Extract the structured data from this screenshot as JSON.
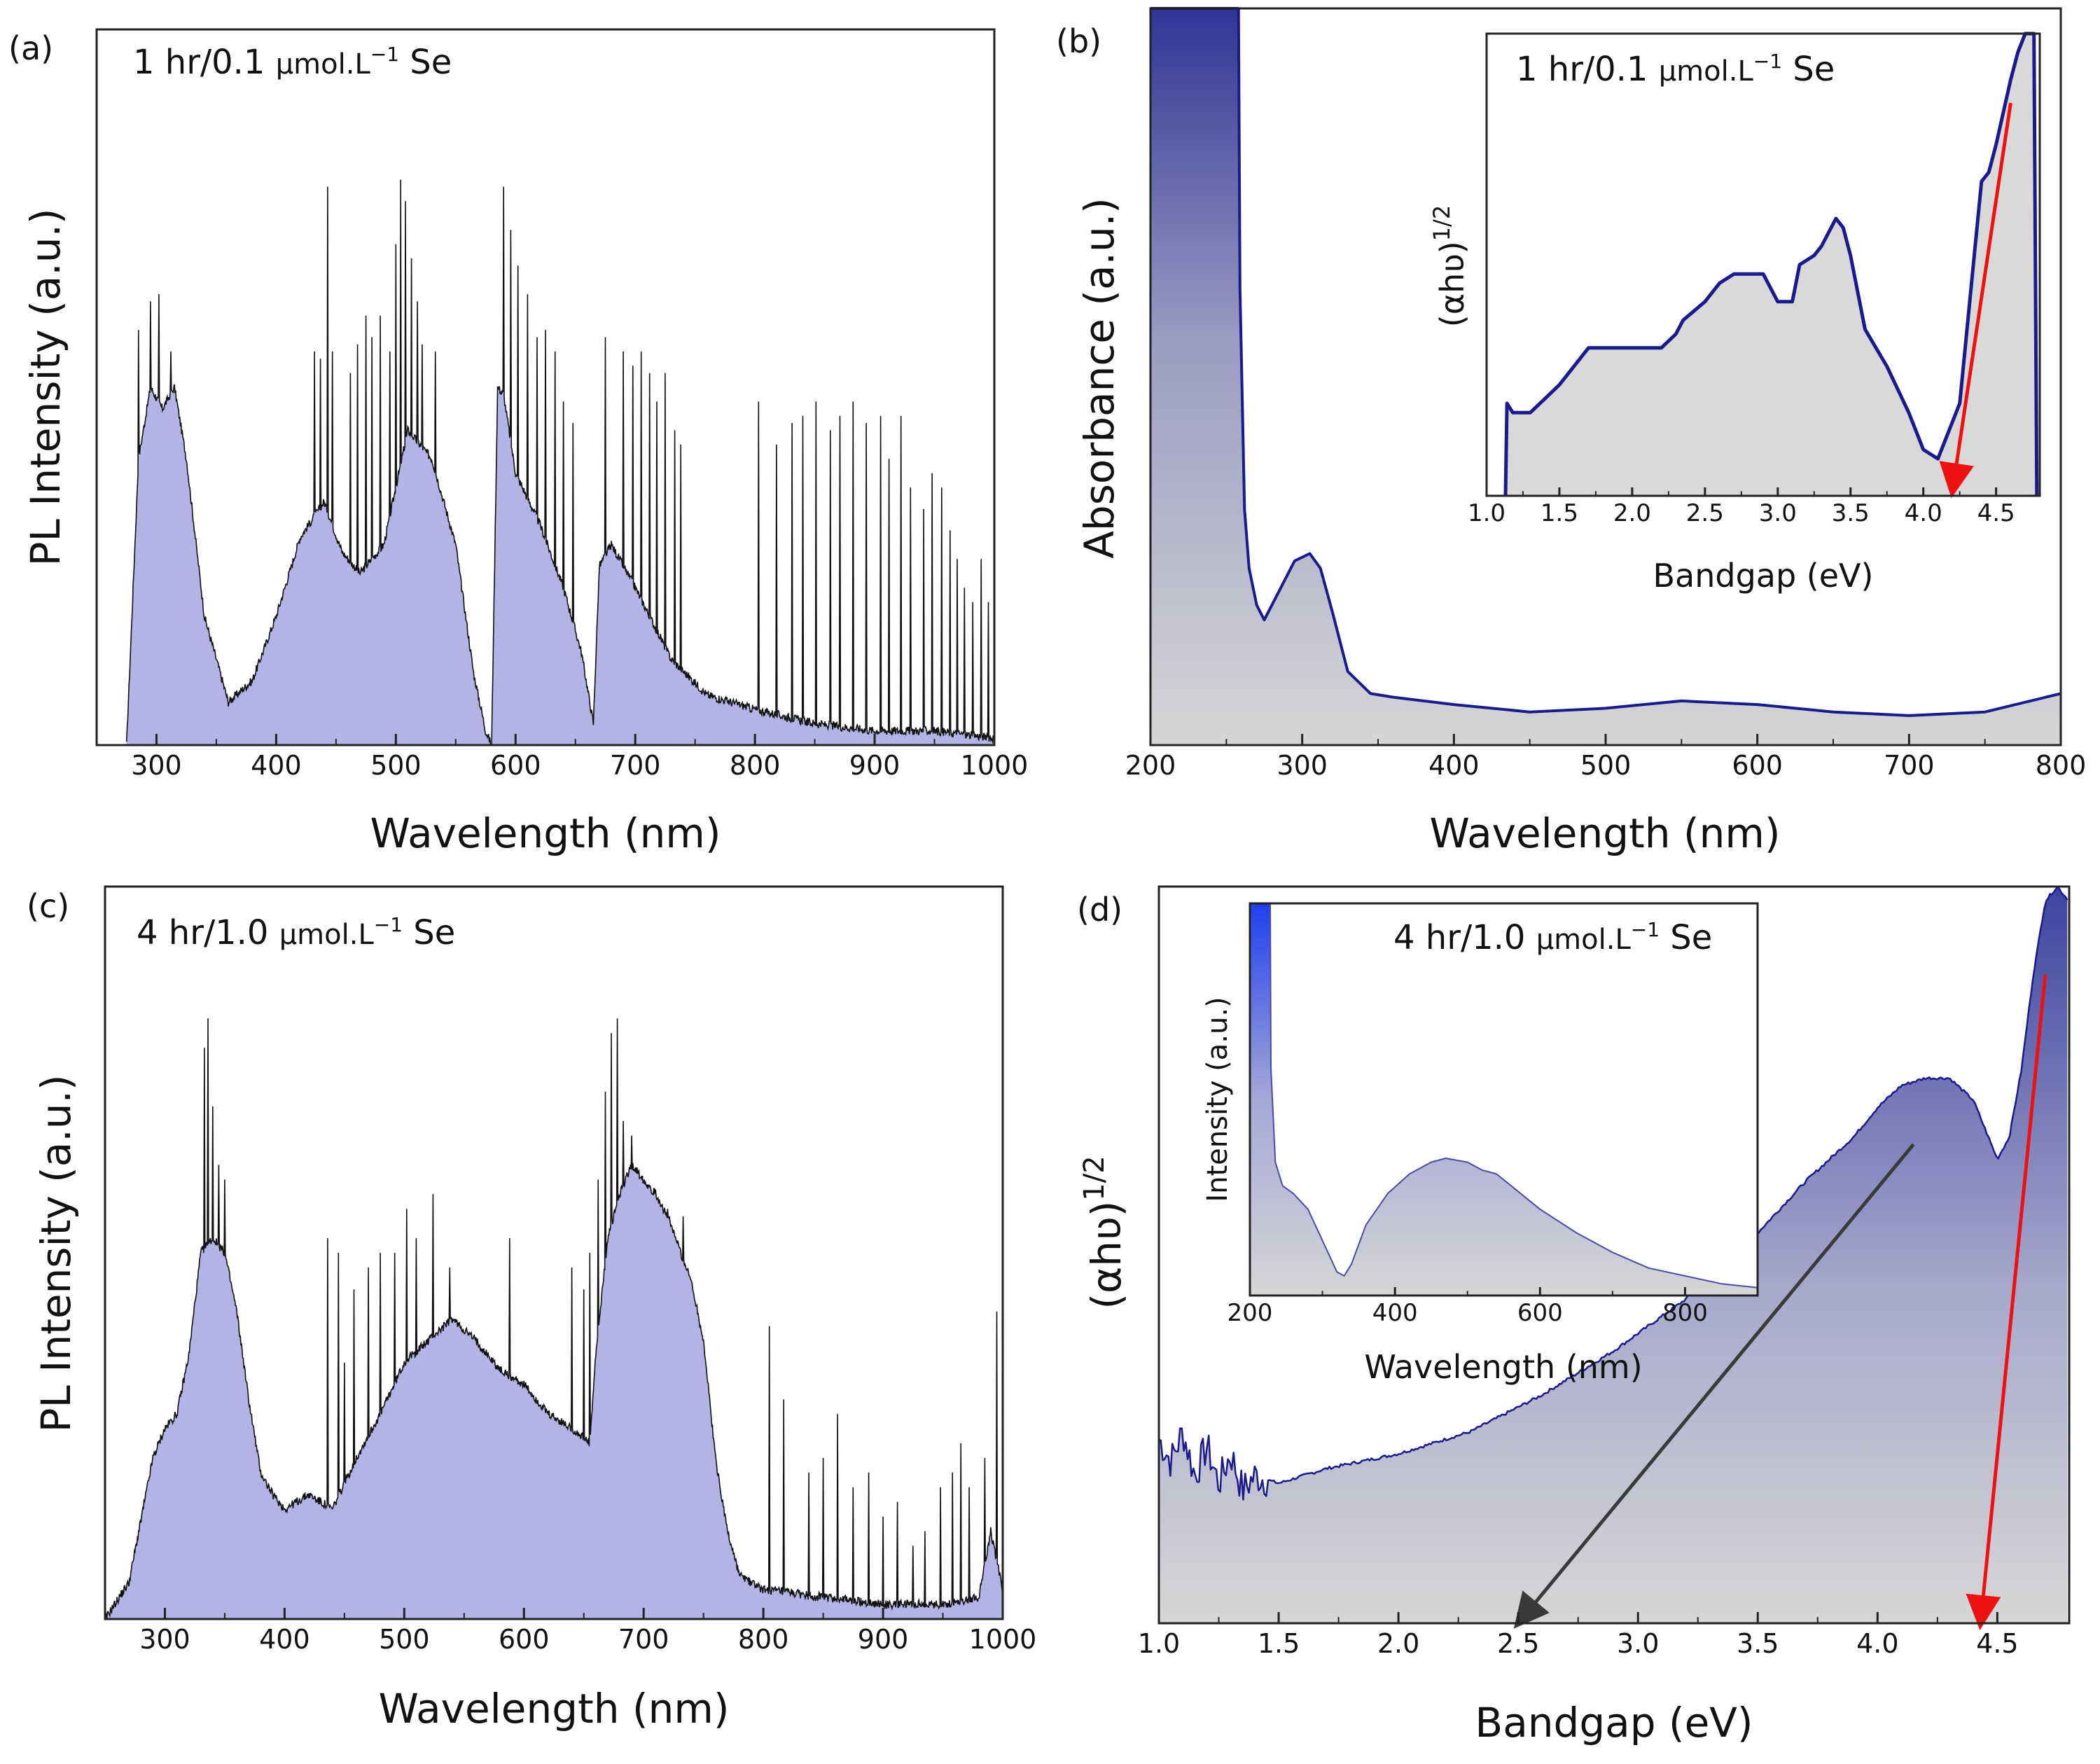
{
  "colors": {
    "pl_fill": "#b3b3e6",
    "pl_line": "#111111",
    "abs_line": "#1a1a8c",
    "abs_fill_top": "#2f3596",
    "abs_fill_bottom": "#d6d6d6",
    "red_arrow": "#ee1111",
    "grey_arrow": "#3a3a3a",
    "inset_top": "#1f3ff0"
  },
  "chart_data": [
    {
      "id": "a",
      "panel_label": "(a)",
      "type": "area",
      "annotation": {
        "prefix": "1 hr/0.1",
        "unit": "µmol.L",
        "sup": "−1",
        "suffix": "Se"
      },
      "xlabel": "Wavelength (nm)",
      "ylabel": "PL Intensity (a.u.)",
      "xlim": [
        250,
        1000
      ],
      "ylim": [
        0,
        100
      ],
      "xticks": [
        300,
        400,
        500,
        600,
        700,
        800,
        900,
        1000
      ],
      "baseline": {
        "x": [
          275,
          285,
          295,
          305,
          315,
          325,
          340,
          360,
          380,
          400,
          420,
          440,
          455,
          470,
          490,
          510,
          530,
          550,
          565,
          575,
          580,
          585,
          590,
          600,
          620,
          640,
          655,
          665,
          670,
          680,
          700,
          730,
          760,
          800,
          850,
          900,
          950,
          1000
        ],
        "y": [
          0,
          40,
          50,
          47,
          50,
          40,
          18,
          6,
          9,
          18,
          29,
          34,
          27,
          24,
          28,
          44,
          40,
          28,
          10,
          2,
          0,
          50,
          49,
          38,
          31,
          22,
          13,
          3,
          25,
          28,
          22,
          12,
          7,
          5,
          3,
          2,
          2,
          1
        ]
      },
      "spikes": [
        {
          "x": 285,
          "y": 58
        },
        {
          "x": 295,
          "y": 62
        },
        {
          "x": 302,
          "y": 63
        },
        {
          "x": 312,
          "y": 55
        },
        {
          "x": 432,
          "y": 55
        },
        {
          "x": 437,
          "y": 54
        },
        {
          "x": 443,
          "y": 78
        },
        {
          "x": 447,
          "y": 55
        },
        {
          "x": 462,
          "y": 52
        },
        {
          "x": 468,
          "y": 56
        },
        {
          "x": 475,
          "y": 60
        },
        {
          "x": 480,
          "y": 57
        },
        {
          "x": 487,
          "y": 60
        },
        {
          "x": 495,
          "y": 55
        },
        {
          "x": 500,
          "y": 70
        },
        {
          "x": 504,
          "y": 79
        },
        {
          "x": 508,
          "y": 76
        },
        {
          "x": 513,
          "y": 68
        },
        {
          "x": 518,
          "y": 62
        },
        {
          "x": 522,
          "y": 56
        },
        {
          "x": 533,
          "y": 55
        },
        {
          "x": 590,
          "y": 78
        },
        {
          "x": 596,
          "y": 72
        },
        {
          "x": 602,
          "y": 67
        },
        {
          "x": 610,
          "y": 63
        },
        {
          "x": 618,
          "y": 57
        },
        {
          "x": 625,
          "y": 58
        },
        {
          "x": 633,
          "y": 55
        },
        {
          "x": 640,
          "y": 48
        },
        {
          "x": 648,
          "y": 45
        },
        {
          "x": 675,
          "y": 57
        },
        {
          "x": 690,
          "y": 55
        },
        {
          "x": 698,
          "y": 53
        },
        {
          "x": 705,
          "y": 55
        },
        {
          "x": 712,
          "y": 52
        },
        {
          "x": 718,
          "y": 48
        },
        {
          "x": 725,
          "y": 52
        },
        {
          "x": 733,
          "y": 44
        },
        {
          "x": 738,
          "y": 42
        },
        {
          "x": 803,
          "y": 48
        },
        {
          "x": 818,
          "y": 42
        },
        {
          "x": 831,
          "y": 45
        },
        {
          "x": 840,
          "y": 46
        },
        {
          "x": 851,
          "y": 48
        },
        {
          "x": 863,
          "y": 44
        },
        {
          "x": 871,
          "y": 46
        },
        {
          "x": 882,
          "y": 48
        },
        {
          "x": 893,
          "y": 45
        },
        {
          "x": 905,
          "y": 46
        },
        {
          "x": 912,
          "y": 40
        },
        {
          "x": 922,
          "y": 46
        },
        {
          "x": 930,
          "y": 36
        },
        {
          "x": 941,
          "y": 33
        },
        {
          "x": 948,
          "y": 38
        },
        {
          "x": 956,
          "y": 36
        },
        {
          "x": 963,
          "y": 30
        },
        {
          "x": 969,
          "y": 26
        },
        {
          "x": 975,
          "y": 22
        },
        {
          "x": 982,
          "y": 20
        },
        {
          "x": 989,
          "y": 26
        },
        {
          "x": 995,
          "y": 20
        }
      ]
    },
    {
      "id": "b",
      "panel_label": "(b)",
      "type": "area",
      "xlabel": "Wavelength (nm)",
      "ylabel": "Absorbance (a.u.)",
      "xlim": [
        200,
        800
      ],
      "ylim": [
        0,
        100
      ],
      "xticks": [
        200,
        300,
        400,
        500,
        600,
        700,
        800
      ],
      "series": {
        "x": [
          200,
          258,
          259,
          262,
          265,
          270,
          275,
          285,
          295,
          305,
          312,
          320,
          330,
          345,
          360,
          400,
          450,
          500,
          550,
          600,
          650,
          700,
          750,
          800
        ],
        "y": [
          100,
          100,
          62,
          32,
          24,
          19,
          17,
          21,
          25,
          26,
          24,
          18,
          10,
          7,
          6.5,
          5.5,
          4.5,
          5,
          6,
          5.5,
          4.5,
          4,
          4.5,
          7
        ]
      },
      "inset": {
        "annotation": {
          "prefix": "1 hr/0.1",
          "unit": "µmol.L",
          "sup": "−1",
          "suffix": "Se"
        },
        "xlabel": "Bandgap (eV)",
        "ylabel": "(αhʋ)",
        "ylabel_sup": "1/2",
        "xlim": [
          1.0,
          4.8
        ],
        "ylim": [
          0,
          100
        ],
        "xticks": [
          "1.0",
          "1.5",
          "2.0",
          "2.5",
          "3.0",
          "3.5",
          "4.0",
          "4.5"
        ],
        "series": {
          "x": [
            1.13,
            1.14,
            1.18,
            1.3,
            1.4,
            1.5,
            1.7,
            2.2,
            2.3,
            2.35,
            2.5,
            2.6,
            2.7,
            2.9,
            3.0,
            3.1,
            3.15,
            3.25,
            3.3,
            3.4,
            3.45,
            3.5,
            3.6,
            3.75,
            3.9,
            4.0,
            4.1,
            4.15,
            4.25,
            4.4,
            4.45,
            4.5,
            4.55,
            4.6,
            4.65,
            4.7,
            4.72,
            4.74,
            4.76,
            4.78
          ],
          "y": [
            0,
            20,
            18,
            18,
            21,
            24,
            32,
            32,
            35,
            38,
            42,
            46,
            48,
            48,
            42,
            42,
            50,
            52,
            54,
            60,
            58,
            52,
            36,
            28,
            18,
            10,
            8,
            12,
            20,
            68,
            70,
            76,
            83,
            90,
            96,
            100,
            100,
            100,
            100,
            0
          ]
        },
        "arrow": {
          "from": [
            4.6,
            85
          ],
          "to": [
            4.2,
            1
          ],
          "color": "red"
        }
      }
    },
    {
      "id": "c",
      "panel_label": "(c)",
      "type": "area",
      "annotation": {
        "prefix": "4 hr/1.0",
        "unit": "µmol.L",
        "sup": "−1",
        "suffix": "Se"
      },
      "xlabel": "Wavelength (nm)",
      "ylabel": "PL Intensity (a.u.)",
      "xlim": [
        250,
        1000
      ],
      "ylim": [
        0,
        100
      ],
      "xticks": [
        300,
        400,
        500,
        600,
        700,
        800,
        900,
        1000
      ],
      "baseline": {
        "x": [
          250,
          270,
          290,
          300,
          310,
          320,
          330,
          340,
          350,
          360,
          370,
          380,
          390,
          400,
          420,
          440,
          460,
          480,
          500,
          520,
          540,
          560,
          580,
          600,
          620,
          640,
          655,
          660,
          670,
          680,
          690,
          700,
          710,
          720,
          740,
          750,
          760,
          770,
          780,
          800,
          850,
          900,
          950,
          980,
          990,
          1000
        ],
        "y": [
          0,
          5,
          22,
          26,
          28,
          36,
          50,
          52,
          50,
          42,
          30,
          20,
          17,
          15,
          17,
          15,
          22,
          28,
          35,
          38,
          41,
          38,
          34,
          32,
          28,
          26,
          24,
          36,
          52,
          58,
          62,
          60,
          58,
          55,
          46,
          38,
          22,
          12,
          6,
          4,
          3,
          2,
          2,
          3,
          12,
          4
        ]
      },
      "spikes": [
        {
          "x": 333,
          "y": 78
        },
        {
          "x": 336,
          "y": 82
        },
        {
          "x": 340,
          "y": 70
        },
        {
          "x": 345,
          "y": 62
        },
        {
          "x": 350,
          "y": 60
        },
        {
          "x": 436,
          "y": 52
        },
        {
          "x": 445,
          "y": 50
        },
        {
          "x": 450,
          "y": 35
        },
        {
          "x": 458,
          "y": 45
        },
        {
          "x": 470,
          "y": 48
        },
        {
          "x": 480,
          "y": 50
        },
        {
          "x": 492,
          "y": 50
        },
        {
          "x": 502,
          "y": 56
        },
        {
          "x": 510,
          "y": 52
        },
        {
          "x": 524,
          "y": 58
        },
        {
          "x": 538,
          "y": 48
        },
        {
          "x": 588,
          "y": 52
        },
        {
          "x": 640,
          "y": 48
        },
        {
          "x": 650,
          "y": 45
        },
        {
          "x": 655,
          "y": 50
        },
        {
          "x": 662,
          "y": 60
        },
        {
          "x": 668,
          "y": 72
        },
        {
          "x": 673,
          "y": 80
        },
        {
          "x": 678,
          "y": 82
        },
        {
          "x": 683,
          "y": 68
        },
        {
          "x": 690,
          "y": 66
        },
        {
          "x": 720,
          "y": 56
        },
        {
          "x": 733,
          "y": 55
        },
        {
          "x": 805,
          "y": 40
        },
        {
          "x": 817,
          "y": 30
        },
        {
          "x": 838,
          "y": 20
        },
        {
          "x": 850,
          "y": 22
        },
        {
          "x": 862,
          "y": 28
        },
        {
          "x": 875,
          "y": 18
        },
        {
          "x": 888,
          "y": 20
        },
        {
          "x": 900,
          "y": 14
        },
        {
          "x": 912,
          "y": 16
        },
        {
          "x": 925,
          "y": 10
        },
        {
          "x": 935,
          "y": 12
        },
        {
          "x": 948,
          "y": 18
        },
        {
          "x": 958,
          "y": 20
        },
        {
          "x": 965,
          "y": 24
        },
        {
          "x": 972,
          "y": 18
        },
        {
          "x": 985,
          "y": 22
        },
        {
          "x": 995,
          "y": 42
        }
      ]
    },
    {
      "id": "d",
      "panel_label": "(d)",
      "type": "area",
      "xlabel": "Bandgap (eV)",
      "ylabel": "(αhʋ)",
      "ylabel_sup": "1/2",
      "xlim": [
        1.0,
        4.8
      ],
      "ylim": [
        0,
        100
      ],
      "xticks": [
        "1.0",
        "1.5",
        "2.0",
        "2.5",
        "3.0",
        "3.5",
        "4.0",
        "4.5"
      ],
      "series": {
        "x": [
          1.0,
          1.05,
          1.1,
          1.15,
          1.2,
          1.25,
          1.3,
          1.35,
          1.4,
          1.5,
          1.7,
          2.0,
          2.3,
          2.6,
          2.9,
          3.2,
          3.5,
          3.7,
          3.9,
          4.0,
          4.1,
          4.2,
          4.3,
          4.4,
          4.45,
          4.5,
          4.55,
          4.6,
          4.65,
          4.7,
          4.75,
          4.8
        ],
        "y": [
          25,
          22,
          26,
          20,
          24,
          19,
          23,
          18,
          20,
          19,
          21,
          23,
          26,
          31,
          37,
          44,
          53,
          60,
          66,
          70,
          73,
          74,
          74,
          71,
          67,
          63,
          66,
          75,
          88,
          98,
          100,
          98
        ]
      },
      "arrows": [
        {
          "from": [
            4.7,
            88
          ],
          "to": [
            4.43,
            0
          ],
          "color": "red"
        },
        {
          "from": [
            4.15,
            65
          ],
          "to": [
            2.5,
            0
          ],
          "color": "grey"
        }
      ],
      "inset": {
        "annotation": {
          "prefix": "4 hr/1.0",
          "unit": "µmol.L",
          "sup": "−1",
          "suffix": "Se"
        },
        "xlabel": "Wavelength (nm)",
        "ylabel": "Intensity (a.u.)",
        "xlim": [
          200,
          900
        ],
        "ylim": [
          0,
          100
        ],
        "xticks": [
          200,
          400,
          600,
          800
        ],
        "series": {
          "x": [
            200,
            228,
            229,
            235,
            245,
            260,
            280,
            300,
            320,
            330,
            340,
            360,
            390,
            420,
            450,
            470,
            500,
            520,
            540,
            560,
            600,
            650,
            700,
            750,
            800,
            850,
            900
          ],
          "y": [
            100,
            100,
            58,
            34,
            28,
            26,
            22,
            14,
            6,
            5,
            8,
            18,
            26,
            31,
            34,
            35,
            34,
            32,
            31,
            28,
            22,
            16,
            11,
            7,
            5,
            3,
            2
          ]
        }
      }
    }
  ]
}
